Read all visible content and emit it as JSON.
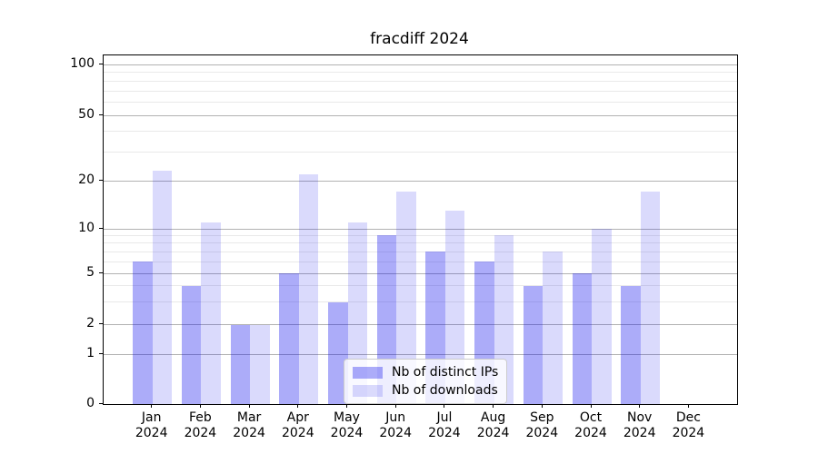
{
  "title": "fracdiff 2024",
  "legend": {
    "items": [
      {
        "label": "Nb of distinct IPs",
        "color_hex_on_white": "#ababf9"
      },
      {
        "label": "Nb of downloads",
        "color_hex_on_white": "#dadaf9"
      }
    ]
  },
  "colors": {
    "ips_bar": "rgba(2,2,237,0.33)",
    "downloads_bar": "rgba(2,2,237,0.146)",
    "major_grid": "#b2b2b2",
    "minor_grid": "#e9e9e9",
    "spine": "#000000",
    "legend_border": "#cccccc"
  },
  "axes": {
    "y_tick_labels": [
      "100",
      "50",
      "20",
      "10",
      "5",
      "2",
      "1",
      "0"
    ],
    "x_tick_labels": [
      "Jan\n2024",
      "Feb\n2024",
      "Mar\n2024",
      "Apr\n2024",
      "May\n2024",
      "Jun\n2024",
      "Jul\n2024",
      "Aug\n2024",
      "Sep\n2024",
      "Oct\n2024",
      "Nov\n2024",
      "Dec\n2024"
    ]
  },
  "chart_data": {
    "type": "bar",
    "title": "fracdiff 2024",
    "categories": [
      "Jan 2024",
      "Feb 2024",
      "Mar 2024",
      "Apr 2024",
      "May 2024",
      "Jun 2024",
      "Jul 2024",
      "Aug 2024",
      "Sep 2024",
      "Oct 2024",
      "Nov 2024",
      "Dec 2024"
    ],
    "series": [
      {
        "name": "Nb of distinct IPs",
        "values": [
          6,
          4,
          2,
          5,
          3,
          9,
          7,
          6,
          4,
          5,
          4,
          0
        ]
      },
      {
        "name": "Nb of downloads",
        "values": [
          23,
          11,
          2,
          22,
          11,
          17,
          13,
          9,
          7,
          10,
          17,
          0
        ]
      }
    ],
    "yscale": "symlog",
    "yticks": [
      0,
      1,
      2,
      5,
      10,
      20,
      50,
      100
    ],
    "minor_yticks": [
      3,
      4,
      6,
      7,
      8,
      9,
      30,
      40,
      60,
      70,
      80,
      90
    ],
    "ylim": [
      0,
      118
    ],
    "grid": true,
    "legend_position": "lower center",
    "bar_group": "side-by-side, IPs left of month tick, downloads right"
  }
}
